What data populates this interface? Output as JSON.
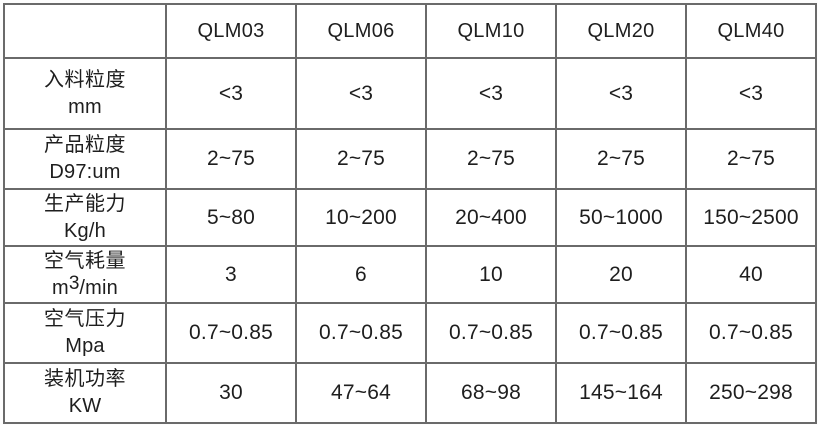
{
  "table": {
    "corner_label": "",
    "columns": [
      "QLM03",
      "QLM06",
      "QLM10",
      "QLM20",
      "QLM40"
    ],
    "rows": [
      {
        "label_cn": "入料粒度",
        "label_unit": "mm",
        "values": [
          "<3",
          "<3",
          "<3",
          "<3",
          "<3"
        ]
      },
      {
        "label_cn": "产品粒度",
        "label_unit": "D97:um",
        "values": [
          "2~75",
          "2~75",
          "2~75",
          "2~75",
          "2~75"
        ]
      },
      {
        "label_cn": "生产能力",
        "label_unit": "Kg/h",
        "values": [
          "5~80",
          "10~200",
          "20~400",
          "50~1000",
          "150~2500"
        ]
      },
      {
        "label_cn": "空气耗量",
        "label_unit": "m³/min",
        "values": [
          "3",
          "6",
          "10",
          "20",
          "40"
        ]
      },
      {
        "label_cn": "空气压力",
        "label_unit": "Mpa",
        "values": [
          "0.7~0.85",
          "0.7~0.85",
          "0.7~0.85",
          "0.7~0.85",
          "0.7~0.85"
        ]
      },
      {
        "label_cn": "装机功率",
        "label_unit": "KW",
        "values": [
          "30",
          "47~64",
          "68~98",
          "145~164",
          "250~298"
        ]
      }
    ],
    "colors": {
      "border": "#6a6a6a",
      "text": "#1e1e1e",
      "background": "#ffffff"
    }
  }
}
